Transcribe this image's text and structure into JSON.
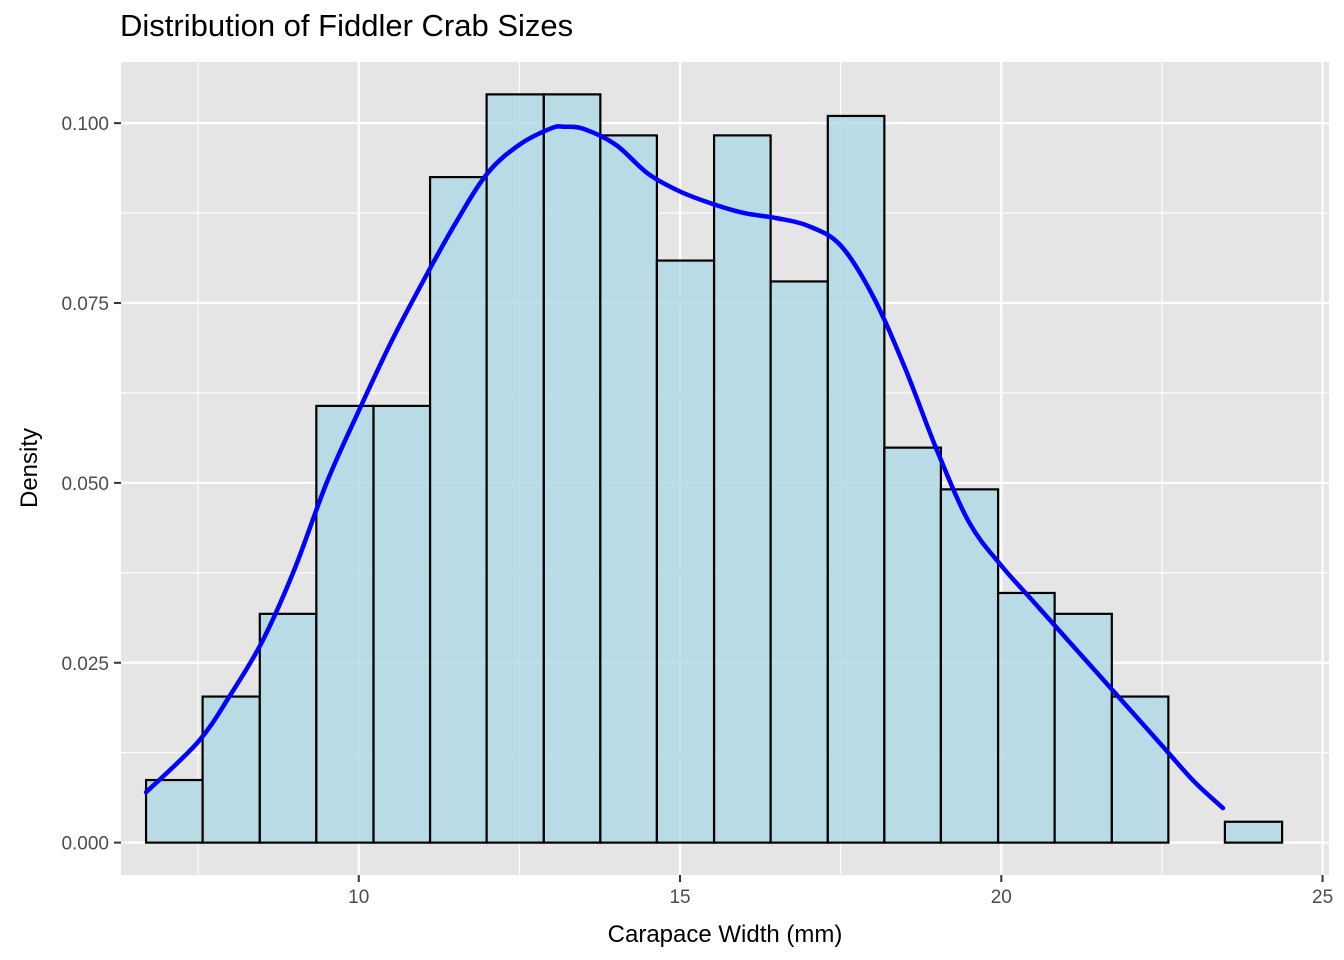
{
  "chart_data": {
    "type": "bar",
    "title": "Distribution of Fiddler Crab Sizes",
    "xlabel": "Carapace Width (mm)",
    "ylabel": "Density",
    "xlim": [
      6.3,
      25.1
    ],
    "ylim": [
      -0.0045,
      0.1085
    ],
    "x_ticks": [
      10,
      15,
      20,
      25
    ],
    "x_tick_labels": [
      "10",
      "15",
      "20",
      "25"
    ],
    "y_ticks": [
      0,
      0.025,
      0.05,
      0.075,
      0.1
    ],
    "y_tick_labels": [
      "0.000",
      "0.025",
      "0.050",
      "0.075",
      "0.100"
    ],
    "grid": true,
    "bins": [
      {
        "x0": 6.69,
        "x1": 7.57,
        "density": 0.0087
      },
      {
        "x0": 7.57,
        "x1": 8.46,
        "density": 0.0203
      },
      {
        "x0": 8.46,
        "x1": 9.34,
        "density": 0.0318
      },
      {
        "x0": 9.34,
        "x1": 10.23,
        "density": 0.0607
      },
      {
        "x0": 10.23,
        "x1": 11.11,
        "density": 0.0607
      },
      {
        "x0": 11.11,
        "x1": 11.99,
        "density": 0.0925
      },
      {
        "x0": 11.99,
        "x1": 12.88,
        "density": 0.104
      },
      {
        "x0": 12.88,
        "x1": 13.76,
        "density": 0.104
      },
      {
        "x0": 13.76,
        "x1": 14.64,
        "density": 0.0983
      },
      {
        "x0": 14.64,
        "x1": 15.53,
        "density": 0.0809
      },
      {
        "x0": 15.53,
        "x1": 16.41,
        "density": 0.0983
      },
      {
        "x0": 16.41,
        "x1": 17.3,
        "density": 0.078
      },
      {
        "x0": 17.3,
        "x1": 18.18,
        "density": 0.101
      },
      {
        "x0": 18.18,
        "x1": 19.06,
        "density": 0.0549
      },
      {
        "x0": 19.06,
        "x1": 19.95,
        "density": 0.0491
      },
      {
        "x0": 19.95,
        "x1": 20.83,
        "density": 0.0347
      },
      {
        "x0": 20.83,
        "x1": 21.72,
        "density": 0.0318
      },
      {
        "x0": 21.72,
        "x1": 22.6,
        "density": 0.0203
      },
      {
        "x0": 22.6,
        "x1": 23.48,
        "density": 0.0
      },
      {
        "x0": 23.48,
        "x1": 24.37,
        "density": 0.0029
      }
    ],
    "density_curve": {
      "x": [
        6.69,
        7.5,
        8.0,
        8.5,
        9.0,
        9.5,
        10.0,
        10.5,
        11.0,
        11.5,
        12.0,
        12.5,
        13.0,
        13.2,
        13.5,
        14.0,
        14.5,
        15.0,
        15.5,
        16.0,
        16.5,
        17.0,
        17.5,
        18.0,
        18.5,
        19.0,
        19.5,
        20.0,
        20.5,
        21.0,
        21.5,
        22.0,
        22.5,
        23.0,
        23.45
      ],
      "y": [
        0.007,
        0.014,
        0.0205,
        0.028,
        0.038,
        0.05,
        0.06,
        0.0695,
        0.078,
        0.086,
        0.093,
        0.097,
        0.0993,
        0.0995,
        0.0992,
        0.097,
        0.093,
        0.0905,
        0.0888,
        0.0875,
        0.0868,
        0.0857,
        0.083,
        0.076,
        0.066,
        0.0545,
        0.0445,
        0.0385,
        0.0335,
        0.0285,
        0.0235,
        0.0185,
        0.0135,
        0.0085,
        0.0048
      ]
    },
    "colors": {
      "panel_background": "#e5e5e5",
      "grid": "#ffffff",
      "bar_fill": "#add8e6",
      "bar_stroke": "#000000",
      "curve": "#0000ff",
      "tick_label": "#4d4d4d"
    }
  }
}
